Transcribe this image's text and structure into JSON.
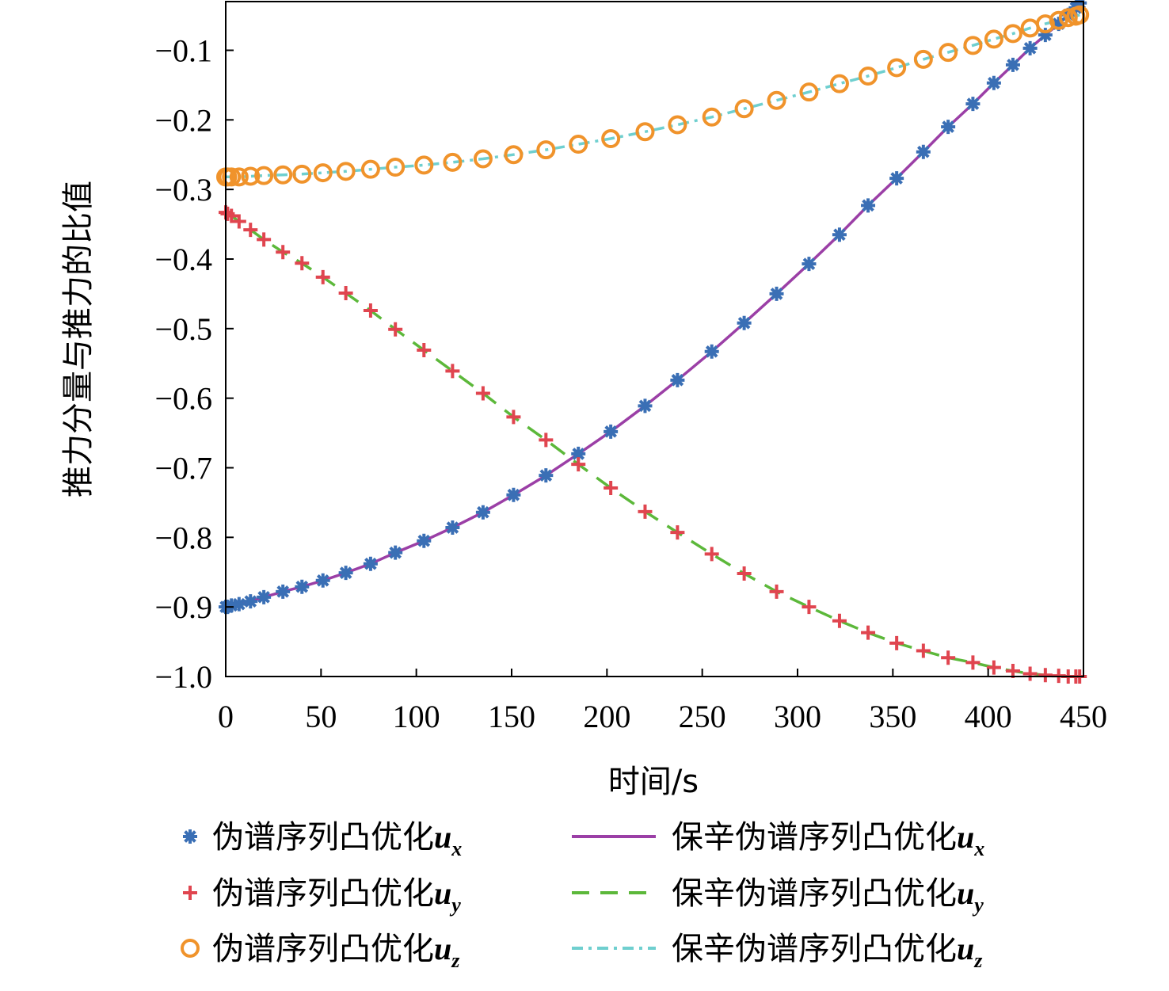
{
  "chart_data": {
    "type": "line",
    "xlabel": "时间/s",
    "ylabel": "推力分量与推力的比值",
    "xlim": [
      0,
      450
    ],
    "ylim": [
      -1.0,
      -0.03
    ],
    "x_ticks": [
      "0",
      "50",
      "100",
      "150",
      "200",
      "250",
      "300",
      "350",
      "400",
      "450"
    ],
    "x_tick_values": [
      0,
      50,
      100,
      150,
      200,
      250,
      300,
      350,
      400,
      450
    ],
    "y_ticks": [
      "−0.1",
      "−0.2",
      "−0.3",
      "−0.4",
      "−0.5",
      "−0.6",
      "−0.7",
      "−0.8",
      "−0.9",
      "−1.0"
    ],
    "y_tick_values": [
      -0.1,
      -0.2,
      -0.3,
      -0.4,
      -0.5,
      -0.6,
      -0.7,
      -0.8,
      -0.9,
      -1.0
    ],
    "grid": false,
    "legend_position": "bottom",
    "sample_times": [
      0,
      1,
      3,
      7,
      13,
      20,
      30,
      40,
      51,
      63,
      76,
      89,
      104,
      119,
      135,
      151,
      168,
      185,
      202,
      220,
      237,
      255,
      272,
      289,
      306,
      322,
      337,
      352,
      366,
      379,
      392,
      403,
      413,
      422,
      430,
      437,
      442,
      446,
      448
    ],
    "series": [
      {
        "name": "伪谱序列凸优化",
        "subscript": "x",
        "style": "marker",
        "marker": "asterisk",
        "color": "#3a6fb5",
        "values": [
          -0.9,
          -0.9,
          -0.898,
          -0.896,
          -0.892,
          -0.886,
          -0.878,
          -0.871,
          -0.862,
          -0.851,
          -0.838,
          -0.822,
          -0.805,
          -0.786,
          -0.764,
          -0.739,
          -0.711,
          -0.68,
          -0.648,
          -0.611,
          -0.574,
          -0.533,
          -0.492,
          -0.45,
          -0.407,
          -0.365,
          -0.323,
          -0.284,
          -0.246,
          -0.21,
          -0.177,
          -0.147,
          -0.121,
          -0.097,
          -0.078,
          -0.062,
          -0.049,
          -0.039,
          -0.032
        ]
      },
      {
        "name": "保辛伪谱序列凸优化",
        "subscript": "x",
        "style": "solid",
        "color": "#9b3fa6",
        "values": [
          -0.9,
          -0.9,
          -0.898,
          -0.896,
          -0.892,
          -0.886,
          -0.878,
          -0.871,
          -0.862,
          -0.851,
          -0.838,
          -0.822,
          -0.805,
          -0.786,
          -0.764,
          -0.739,
          -0.711,
          -0.68,
          -0.648,
          -0.611,
          -0.574,
          -0.533,
          -0.492,
          -0.45,
          -0.407,
          -0.365,
          -0.323,
          -0.284,
          -0.246,
          -0.21,
          -0.177,
          -0.147,
          -0.121,
          -0.097,
          -0.078,
          -0.062,
          -0.049,
          -0.039,
          -0.032
        ]
      },
      {
        "name": "伪谱序列凸优化",
        "subscript": "y",
        "style": "marker",
        "marker": "plus",
        "color": "#e0454f",
        "values": [
          -0.333,
          -0.335,
          -0.338,
          -0.346,
          -0.358,
          -0.372,
          -0.39,
          -0.406,
          -0.426,
          -0.449,
          -0.474,
          -0.501,
          -0.531,
          -0.561,
          -0.593,
          -0.627,
          -0.66,
          -0.695,
          -0.729,
          -0.763,
          -0.793,
          -0.824,
          -0.852,
          -0.878,
          -0.9,
          -0.92,
          -0.937,
          -0.952,
          -0.963,
          -0.973,
          -0.98,
          -0.987,
          -0.992,
          -0.996,
          -0.998,
          -0.999,
          -1.0,
          -1.0,
          -1.0
        ]
      },
      {
        "name": "保辛伪谱序列凸优化",
        "subscript": "y",
        "style": "dashed",
        "color": "#5cb83a",
        "values": [
          -0.333,
          -0.335,
          -0.338,
          -0.346,
          -0.358,
          -0.372,
          -0.39,
          -0.406,
          -0.426,
          -0.449,
          -0.474,
          -0.501,
          -0.531,
          -0.561,
          -0.593,
          -0.627,
          -0.66,
          -0.695,
          -0.729,
          -0.763,
          -0.793,
          -0.824,
          -0.852,
          -0.878,
          -0.9,
          -0.92,
          -0.937,
          -0.952,
          -0.963,
          -0.973,
          -0.98,
          -0.987,
          -0.992,
          -0.996,
          -0.998,
          -0.999,
          -1.0,
          -1.0,
          -1.0
        ]
      },
      {
        "name": "伪谱序列凸优化",
        "subscript": "z",
        "style": "marker",
        "marker": "circle",
        "color": "#f0932b",
        "values": [
          -0.282,
          -0.282,
          -0.282,
          -0.282,
          -0.281,
          -0.28,
          -0.279,
          -0.278,
          -0.276,
          -0.274,
          -0.271,
          -0.268,
          -0.265,
          -0.261,
          -0.256,
          -0.25,
          -0.243,
          -0.235,
          -0.227,
          -0.217,
          -0.207,
          -0.196,
          -0.184,
          -0.172,
          -0.16,
          -0.148,
          -0.137,
          -0.125,
          -0.113,
          -0.103,
          -0.093,
          -0.084,
          -0.076,
          -0.068,
          -0.062,
          -0.057,
          -0.053,
          -0.051,
          -0.049
        ]
      },
      {
        "name": "保辛伪谱序列凸优化",
        "subscript": "z",
        "style": "dashdot",
        "color": "#6fcfcf",
        "values": [
          -0.282,
          -0.282,
          -0.282,
          -0.282,
          -0.281,
          -0.28,
          -0.279,
          -0.278,
          -0.276,
          -0.274,
          -0.271,
          -0.268,
          -0.265,
          -0.261,
          -0.256,
          -0.25,
          -0.243,
          -0.235,
          -0.227,
          -0.217,
          -0.207,
          -0.196,
          -0.184,
          -0.172,
          -0.16,
          -0.148,
          -0.137,
          -0.125,
          -0.113,
          -0.103,
          -0.093,
          -0.084,
          -0.076,
          -0.068,
          -0.062,
          -0.057,
          -0.053,
          -0.051,
          -0.049
        ]
      }
    ]
  }
}
